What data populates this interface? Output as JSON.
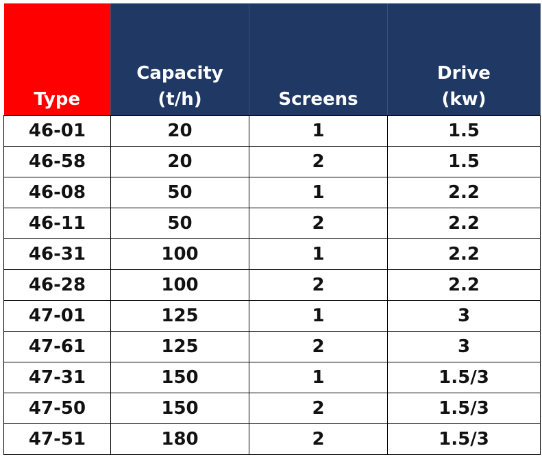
{
  "table": {
    "headers": {
      "type": "Type",
      "capacity_line1": "Capacity",
      "capacity_line2": "(t/h)",
      "screens": "Screens",
      "drive_line1": "Drive",
      "drive_line2": "(kw)"
    },
    "rows": [
      {
        "type": "46-01",
        "capacity": "20",
        "screens": "1",
        "drive": "1.5"
      },
      {
        "type": "46-58",
        "capacity": "20",
        "screens": "2",
        "drive": "1.5"
      },
      {
        "type": "46-08",
        "capacity": "50",
        "screens": "1",
        "drive": "2.2"
      },
      {
        "type": "46-11",
        "capacity": "50",
        "screens": "2",
        "drive": "2.2"
      },
      {
        "type": "46-31",
        "capacity": "100",
        "screens": "1",
        "drive": "2.2"
      },
      {
        "type": "46-28",
        "capacity": "100",
        "screens": "2",
        "drive": "2.2"
      },
      {
        "type": "47-01",
        "capacity": "125",
        "screens": "1",
        "drive": "3"
      },
      {
        "type": "47-61",
        "capacity": "125",
        "screens": "2",
        "drive": "3"
      },
      {
        "type": "47-31",
        "capacity": "150",
        "screens": "1",
        "drive": "1.5/3"
      },
      {
        "type": "47-50",
        "capacity": "150",
        "screens": "2",
        "drive": "1.5/3"
      },
      {
        "type": "47-51",
        "capacity": "180",
        "screens": "2",
        "drive": "1.5/3"
      }
    ]
  },
  "colors": {
    "type_header_bg": "#ff0000",
    "header_bg": "#1f3864",
    "header_text": "#ffffff",
    "cell_text": "#111111",
    "grid": "#000000"
  }
}
